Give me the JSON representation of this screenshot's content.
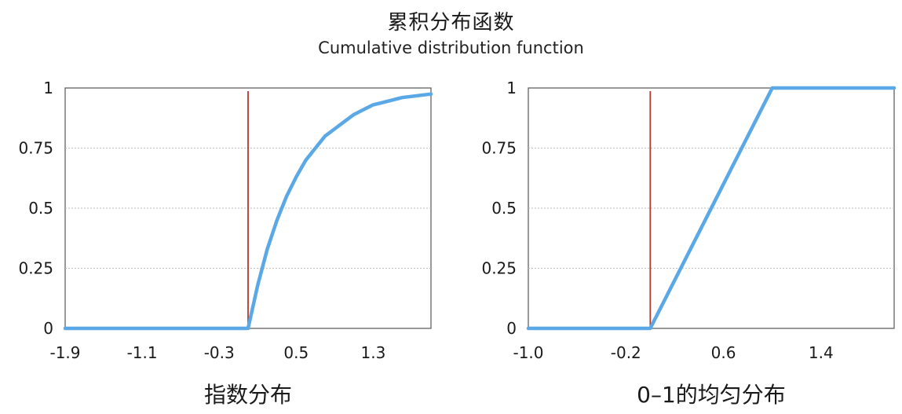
{
  "title": "累积分布函数",
  "subtitle": "Cumulative distribution function",
  "colors": {
    "curve": "#5aa8e6",
    "marker": "#b03a2e",
    "grid": "#bdbdbd",
    "axis": "#555555"
  },
  "chart_data": [
    {
      "type": "line",
      "label": "指数分布",
      "x_ticks": [
        "-1.9",
        "-1.1",
        "-0.3",
        "0.5",
        "1.3"
      ],
      "x_tick_values": [
        -1.9,
        -1.1,
        -0.3,
        0.5,
        1.3
      ],
      "y_ticks": [
        "0",
        "0.25",
        "0.5",
        "0.75",
        "1"
      ],
      "y_tick_values": [
        0,
        0.25,
        0.5,
        0.75,
        1
      ],
      "xlim": [
        -1.9,
        1.9
      ],
      "ylim": [
        0,
        1
      ],
      "marker_x": 0,
      "grid": true,
      "series": [
        {
          "x": [
            -1.9,
            -0.3,
            0,
            0.1,
            0.2,
            0.3,
            0.4,
            0.5,
            0.6,
            0.7,
            0.8,
            0.9,
            1.0,
            1.1,
            1.2,
            1.3,
            1.4,
            1.5,
            1.6,
            1.7,
            1.8,
            1.9
          ],
          "y": [
            0,
            0,
            0,
            0.18,
            0.33,
            0.45,
            0.55,
            0.63,
            0.7,
            0.75,
            0.8,
            0.83,
            0.86,
            0.89,
            0.91,
            0.93,
            0.94,
            0.95,
            0.96,
            0.965,
            0.97,
            0.975
          ]
        }
      ]
    },
    {
      "type": "line",
      "label": "0–1的均匀分布",
      "x_ticks": [
        "-1.0",
        "-0.2",
        "0.6",
        "1.4"
      ],
      "x_tick_values": [
        -1.0,
        -0.2,
        0.6,
        1.4
      ],
      "y_ticks": [
        "0",
        "0.25",
        "0.5",
        "0.75",
        "1"
      ],
      "y_tick_values": [
        0,
        0.25,
        0.5,
        0.75,
        1
      ],
      "xlim": [
        -1.0,
        2.0
      ],
      "ylim": [
        0,
        1
      ],
      "marker_x": 0,
      "grid": true,
      "series": [
        {
          "x": [
            -1.0,
            0,
            1.0,
            2.0
          ],
          "y": [
            0,
            0,
            1,
            1
          ]
        }
      ]
    }
  ]
}
